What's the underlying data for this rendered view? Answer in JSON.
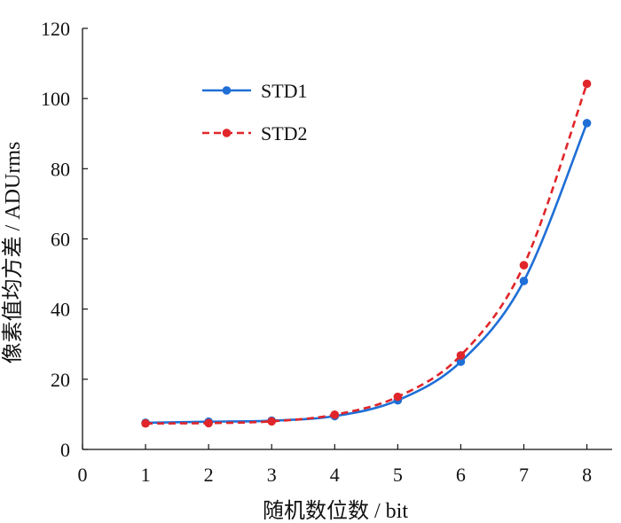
{
  "chart_data": {
    "type": "line",
    "title": "",
    "xlabel": "随机数位数 / bit",
    "ylabel": "像素值均方差 / ADUrms",
    "xlim": [
      0,
      8.4
    ],
    "ylim": [
      0,
      120
    ],
    "xticks": [
      0,
      1,
      2,
      3,
      4,
      5,
      6,
      7,
      8
    ],
    "yticks": [
      0,
      20,
      40,
      60,
      80,
      100,
      120
    ],
    "grid": false,
    "legend_position": "upper-left",
    "x": [
      1,
      2,
      3,
      4,
      5,
      6,
      7,
      8
    ],
    "series": [
      {
        "name": "STD1",
        "values": [
          7.6,
          7.9,
          8.2,
          9.5,
          14.0,
          25.0,
          48.0,
          93.0
        ],
        "color": "#1f6fd6",
        "style": "solid"
      },
      {
        "name": "STD2",
        "values": [
          7.4,
          7.5,
          8.0,
          9.9,
          15.0,
          26.8,
          52.5,
          104.2
        ],
        "color": "#e0262a",
        "style": "dashed"
      }
    ]
  }
}
